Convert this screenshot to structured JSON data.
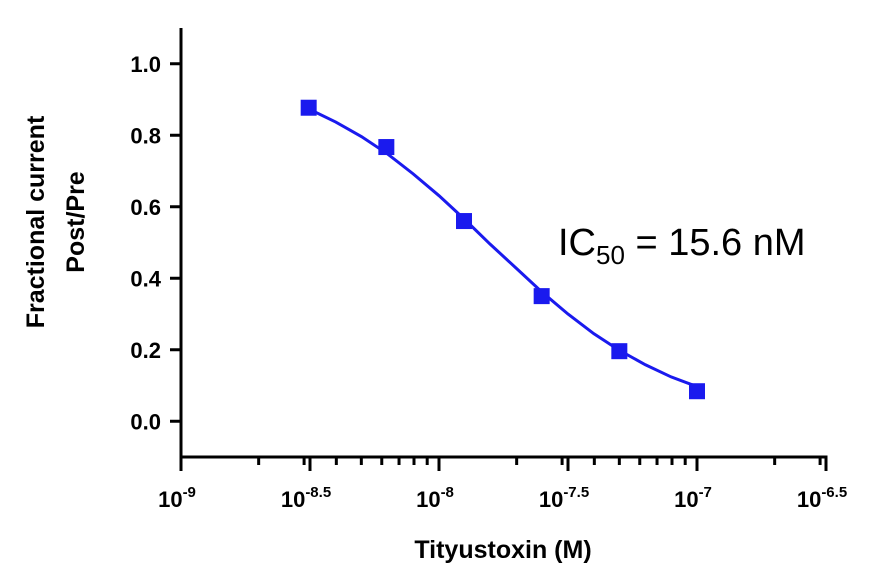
{
  "chart_data": {
    "type": "scatter",
    "x_label": "Tityustoxin (M)",
    "y_label": [
      "Fractional current",
      "Post/Pre"
    ],
    "annotation": {
      "text": "IC",
      "subscript": "50",
      "suffix": " = 15.6 nM"
    },
    "x": [
      3.125e-09,
      6.25e-09,
      1.25e-08,
      2.5e-08,
      5e-08,
      1e-07
    ],
    "values": [
      0.877,
      0.767,
      0.56,
      0.35,
      0.196,
      0.084
    ],
    "color": "#1a1aee",
    "fit": {
      "x": [
        3.16e-09,
        3.98e-09,
        5.01e-09,
        6.31e-09,
        7.94e-09,
        1e-08,
        1.26e-08,
        1.58e-08,
        2e-08,
        2.51e-08,
        3.16e-08,
        3.98e-08,
        5.01e-08,
        6.31e-08,
        7.94e-08,
        1e-07
      ],
      "values": [
        0.872,
        0.837,
        0.796,
        0.748,
        0.692,
        0.631,
        0.564,
        0.495,
        0.427,
        0.361,
        0.3,
        0.245,
        0.198,
        0.158,
        0.124,
        0.097
      ],
      "color": "#1a1aee"
    },
    "xscale": "log",
    "minor_ticks": true,
    "xlim": [
      1e-09,
      3.1623e-07
    ],
    "xticks": [
      {
        "value": 1e-09,
        "label": {
          "base": "10",
          "exponent": "-9"
        }
      },
      {
        "value": 3.1623e-09,
        "label": {
          "base": "10",
          "exponent": "-8.5"
        }
      },
      {
        "value": 1e-08,
        "label": {
          "base": "10",
          "exponent": "-8"
        }
      },
      {
        "value": 3.1623e-08,
        "label": {
          "base": "10",
          "exponent": "-7.5"
        }
      },
      {
        "value": 1e-07,
        "label": {
          "base": "10",
          "exponent": "-7"
        }
      },
      {
        "value": 3.1623e-07,
        "label": {
          "base": "10",
          "exponent": "-6.5"
        }
      }
    ],
    "ylim": [
      -0.1,
      1.1
    ],
    "yticks": [
      {
        "value": 0,
        "label": "0.0"
      },
      {
        "value": 0.2,
        "label": "0.2"
      },
      {
        "value": 0.4,
        "label": "0.4"
      },
      {
        "value": 0.6,
        "label": "0.6"
      },
      {
        "value": 0.8,
        "label": "0.8"
      },
      {
        "value": 1,
        "label": "1.0"
      }
    ]
  }
}
